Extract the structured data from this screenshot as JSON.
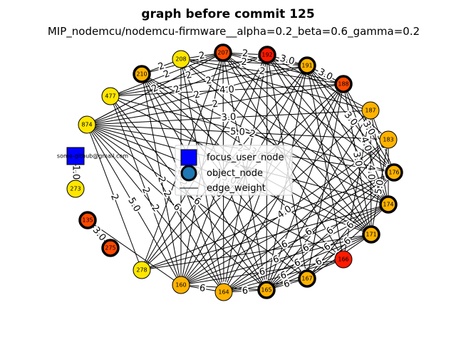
{
  "title": "graph before commit 125",
  "subtitle": "MIP_nodemcu/nodemcu-firmware__alpha=0.2_beta=0.6_gamma=0.2",
  "colors": {
    "focus": "#0000ff",
    "yellow": "#ffe600",
    "orange": "#ffb300",
    "red_orange": "#ff4a00",
    "red": "#ff1a00",
    "edge": "#000000",
    "legend_object": "#1f77b4"
  },
  "legend": {
    "focus_label": "focus_user_node",
    "object_label": "object_node",
    "edge_label": "edge_weight"
  },
  "focus_node": {
    "id": "focus",
    "label": "some-github@gmail.com"
  },
  "nodes": [
    {
      "id": "207",
      "label": "207",
      "fill": "red_orange",
      "thick": true
    },
    {
      "id": "192",
      "label": "192",
      "fill": "red",
      "thick": true
    },
    {
      "id": "191",
      "label": "191",
      "fill": "orange",
      "thick": true
    },
    {
      "id": "188",
      "label": "188",
      "fill": "red_orange",
      "thick": true
    },
    {
      "id": "187",
      "label": "187",
      "fill": "orange",
      "thick": false
    },
    {
      "id": "183",
      "label": "183",
      "fill": "orange",
      "thick": false
    },
    {
      "id": "176",
      "label": "176",
      "fill": "orange",
      "thick": true
    },
    {
      "id": "174",
      "label": "174",
      "fill": "orange",
      "thick": true
    },
    {
      "id": "171",
      "label": "171",
      "fill": "orange",
      "thick": true
    },
    {
      "id": "166",
      "label": "166",
      "fill": "red",
      "thick": false
    },
    {
      "id": "167",
      "label": "167",
      "fill": "orange",
      "thick": true
    },
    {
      "id": "165",
      "label": "165",
      "fill": "orange",
      "thick": true
    },
    {
      "id": "164",
      "label": "164",
      "fill": "orange",
      "thick": false
    },
    {
      "id": "160",
      "label": "160",
      "fill": "orange",
      "thick": false
    },
    {
      "id": "278",
      "label": "278",
      "fill": "yellow",
      "thick": false
    },
    {
      "id": "275",
      "label": "275",
      "fill": "red_orange",
      "thick": true
    },
    {
      "id": "135",
      "label": "135",
      "fill": "red_orange",
      "thick": true
    },
    {
      "id": "273",
      "label": "273",
      "fill": "yellow",
      "thick": false
    },
    {
      "id": "874",
      "label": "874",
      "fill": "yellow",
      "thick": false
    },
    {
      "id": "477",
      "label": "477",
      "fill": "yellow",
      "thick": false
    },
    {
      "id": "210",
      "label": "210",
      "fill": "orange",
      "thick": true
    },
    {
      "id": "208",
      "label": "208",
      "fill": "yellow",
      "thick": false
    }
  ],
  "edges": [
    [
      "focus",
      "273",
      "1.0"
    ],
    [
      "135",
      "275",
      "3.0"
    ],
    [
      "208",
      "207",
      "2"
    ],
    [
      "210",
      "208",
      "2"
    ],
    [
      "210",
      "207",
      "5.0"
    ],
    [
      "207",
      "192",
      "2"
    ],
    [
      "207",
      "191",
      "3.0"
    ],
    [
      "192",
      "191",
      "3.0"
    ],
    [
      "191",
      "188",
      "3.0"
    ],
    [
      "210",
      "174",
      ""
    ],
    [
      "210",
      "171",
      "3.0"
    ],
    [
      "210",
      "167",
      "2"
    ],
    [
      "210",
      "165",
      ""
    ],
    [
      "210",
      "166",
      ""
    ],
    [
      "477",
      "207",
      "2"
    ],
    [
      "477",
      "192",
      "2"
    ],
    [
      "477",
      "191",
      "2"
    ],
    [
      "477",
      "188",
      "4.0"
    ],
    [
      "477",
      "176",
      "2"
    ],
    [
      "477",
      "171",
      ""
    ],
    [
      "477",
      "165",
      ""
    ],
    [
      "874",
      "207",
      "2"
    ],
    [
      "874",
      "192",
      "2"
    ],
    [
      "874",
      "191",
      "2"
    ],
    [
      "874",
      "188",
      "2"
    ],
    [
      "874",
      "187",
      "3.0"
    ],
    [
      "874",
      "183",
      "5.0"
    ],
    [
      "874",
      "176",
      "2"
    ],
    [
      "874",
      "174",
      "2"
    ],
    [
      "874",
      "171",
      "5.0"
    ],
    [
      "874",
      "166",
      "3.0"
    ],
    [
      "874",
      "167",
      "6"
    ],
    [
      "874",
      "165",
      "6"
    ],
    [
      "874",
      "164",
      "2"
    ],
    [
      "874",
      "160",
      "5.0"
    ],
    [
      "874",
      "278",
      "2"
    ],
    [
      "208",
      "191",
      "2"
    ],
    [
      "208",
      "188",
      "2"
    ],
    [
      "208",
      "187",
      ""
    ],
    [
      "208",
      "174",
      ""
    ],
    [
      "208",
      "171",
      ""
    ],
    [
      "208",
      "165",
      ""
    ],
    [
      "208",
      "164",
      ""
    ],
    [
      "208",
      "160",
      "2"
    ],
    [
      "207",
      "188",
      ""
    ],
    [
      "207",
      "176",
      ""
    ],
    [
      "207",
      "174",
      ""
    ],
    [
      "207",
      "171",
      ""
    ],
    [
      "207",
      "166",
      ""
    ],
    [
      "207",
      "165",
      ""
    ],
    [
      "207",
      "164",
      ""
    ],
    [
      "207",
      "160",
      ""
    ],
    [
      "192",
      "187",
      ""
    ],
    [
      "192",
      "176",
      ""
    ],
    [
      "192",
      "174",
      ""
    ],
    [
      "192",
      "171",
      ""
    ],
    [
      "192",
      "167",
      ""
    ],
    [
      "192",
      "165",
      ""
    ],
    [
      "192",
      "164",
      ""
    ],
    [
      "192",
      "160",
      ""
    ],
    [
      "191",
      "183",
      ""
    ],
    [
      "191",
      "176",
      "3.0"
    ],
    [
      "191",
      "174",
      ""
    ],
    [
      "191",
      "171",
      ""
    ],
    [
      "191",
      "166",
      ""
    ],
    [
      "191",
      "165",
      ""
    ],
    [
      "191",
      "164",
      ""
    ],
    [
      "191",
      "160",
      ""
    ],
    [
      "188",
      "176",
      "3.0"
    ],
    [
      "188",
      "174",
      "4.0"
    ],
    [
      "188",
      "171",
      "3.0"
    ],
    [
      "188",
      "167",
      ""
    ],
    [
      "188",
      "165",
      ""
    ],
    [
      "188",
      "164",
      ""
    ],
    [
      "188",
      "160",
      ""
    ],
    [
      "187",
      "176",
      "5.0"
    ],
    [
      "187",
      "174",
      ""
    ],
    [
      "187",
      "171",
      "4.0"
    ],
    [
      "187",
      "166",
      ""
    ],
    [
      "187",
      "165",
      ""
    ],
    [
      "187",
      "160",
      ""
    ],
    [
      "183",
      "174",
      "4.0"
    ],
    [
      "183",
      "171",
      "5.0"
    ],
    [
      "183",
      "165",
      ""
    ],
    [
      "183",
      "164",
      ""
    ],
    [
      "183",
      "160",
      "4.0"
    ],
    [
      "176",
      "167",
      "6"
    ],
    [
      "176",
      "165",
      "6"
    ],
    [
      "176",
      "164",
      "6"
    ],
    [
      "176",
      "160",
      ""
    ],
    [
      "174",
      "167",
      "6"
    ],
    [
      "174",
      "165",
      "6"
    ],
    [
      "174",
      "164",
      "6"
    ],
    [
      "174",
      "160",
      "6"
    ],
    [
      "171",
      "167",
      "6"
    ],
    [
      "171",
      "165",
      "6"
    ],
    [
      "171",
      "164",
      "6"
    ],
    [
      "171",
      "160",
      "6"
    ],
    [
      "166",
      "165",
      "6"
    ],
    [
      "166",
      "164",
      "6"
    ],
    [
      "166",
      "160",
      "6"
    ],
    [
      "167",
      "165",
      "6"
    ],
    [
      "167",
      "164",
      "6"
    ],
    [
      "165",
      "164",
      "6"
    ],
    [
      "165",
      "160",
      "6"
    ],
    [
      "164",
      "160",
      "6"
    ],
    [
      "210",
      "160",
      "2"
    ],
    [
      "210",
      "164",
      "2"
    ],
    [
      "477",
      "160",
      "2"
    ],
    [
      "477",
      "164",
      "2"
    ],
    [
      "874",
      "207",
      ""
    ],
    [
      "135",
      "160",
      ""
    ],
    [
      "278",
      "207",
      ""
    ],
    [
      "278",
      "192",
      ""
    ],
    [
      "278",
      "191",
      ""
    ],
    [
      "278",
      "188",
      ""
    ],
    [
      "278",
      "176",
      ""
    ],
    [
      "278",
      "174",
      ""
    ],
    [
      "278",
      "171",
      ""
    ]
  ]
}
